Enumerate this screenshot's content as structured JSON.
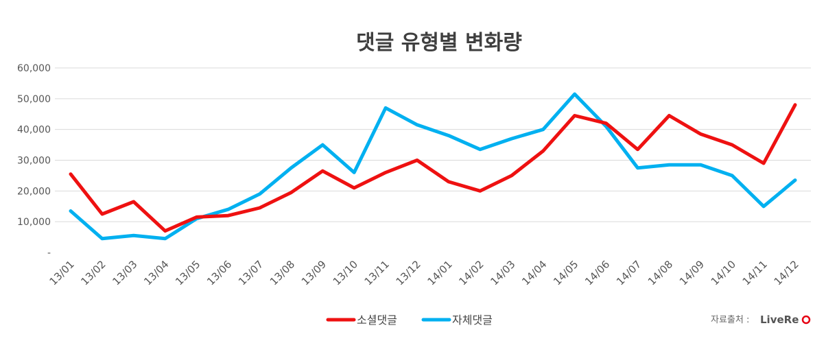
{
  "chart_data": {
    "type": "line",
    "title": "댓글 유형별 변화량",
    "categories": [
      "13/01",
      "13/02",
      "13/03",
      "13/04",
      "13/05",
      "13/06",
      "13/07",
      "13/08",
      "13/09",
      "13/10",
      "13/11",
      "13/12",
      "14/01",
      "14/02",
      "14/03",
      "14/04",
      "14/05",
      "14/06",
      "14/07",
      "14/08",
      "14/09",
      "14/10",
      "14/11",
      "14/12"
    ],
    "series": [
      {
        "name": "소셜댓글",
        "color": "#ee1111",
        "values": [
          25500,
          12500,
          16500,
          7000,
          11500,
          12000,
          14500,
          19500,
          26500,
          21000,
          26000,
          30000,
          23000,
          20000,
          25000,
          33000,
          44500,
          42000,
          33500,
          44500,
          38500,
          35000,
          29000,
          48000
        ]
      },
      {
        "name": "자체댓글",
        "color": "#00b0f0",
        "values": [
          13500,
          4500,
          5500,
          4500,
          11000,
          14000,
          19000,
          27500,
          35000,
          26000,
          47000,
          41500,
          38000,
          33500,
          37000,
          40000,
          51500,
          41000,
          27500,
          28500,
          28500,
          25000,
          15000,
          23500
        ]
      }
    ],
    "ylim": [
      0,
      60000
    ],
    "yticks": [
      0,
      10000,
      20000,
      30000,
      40000,
      50000,
      60000
    ],
    "ytick_labels": [
      "-",
      "10,000",
      "20,000",
      "30,000",
      "40,000",
      "50,000",
      "60,000"
    ],
    "grid": true,
    "legend": "bottom"
  },
  "source": {
    "label": "자료출처 : ",
    "brand": "LiveRe"
  }
}
